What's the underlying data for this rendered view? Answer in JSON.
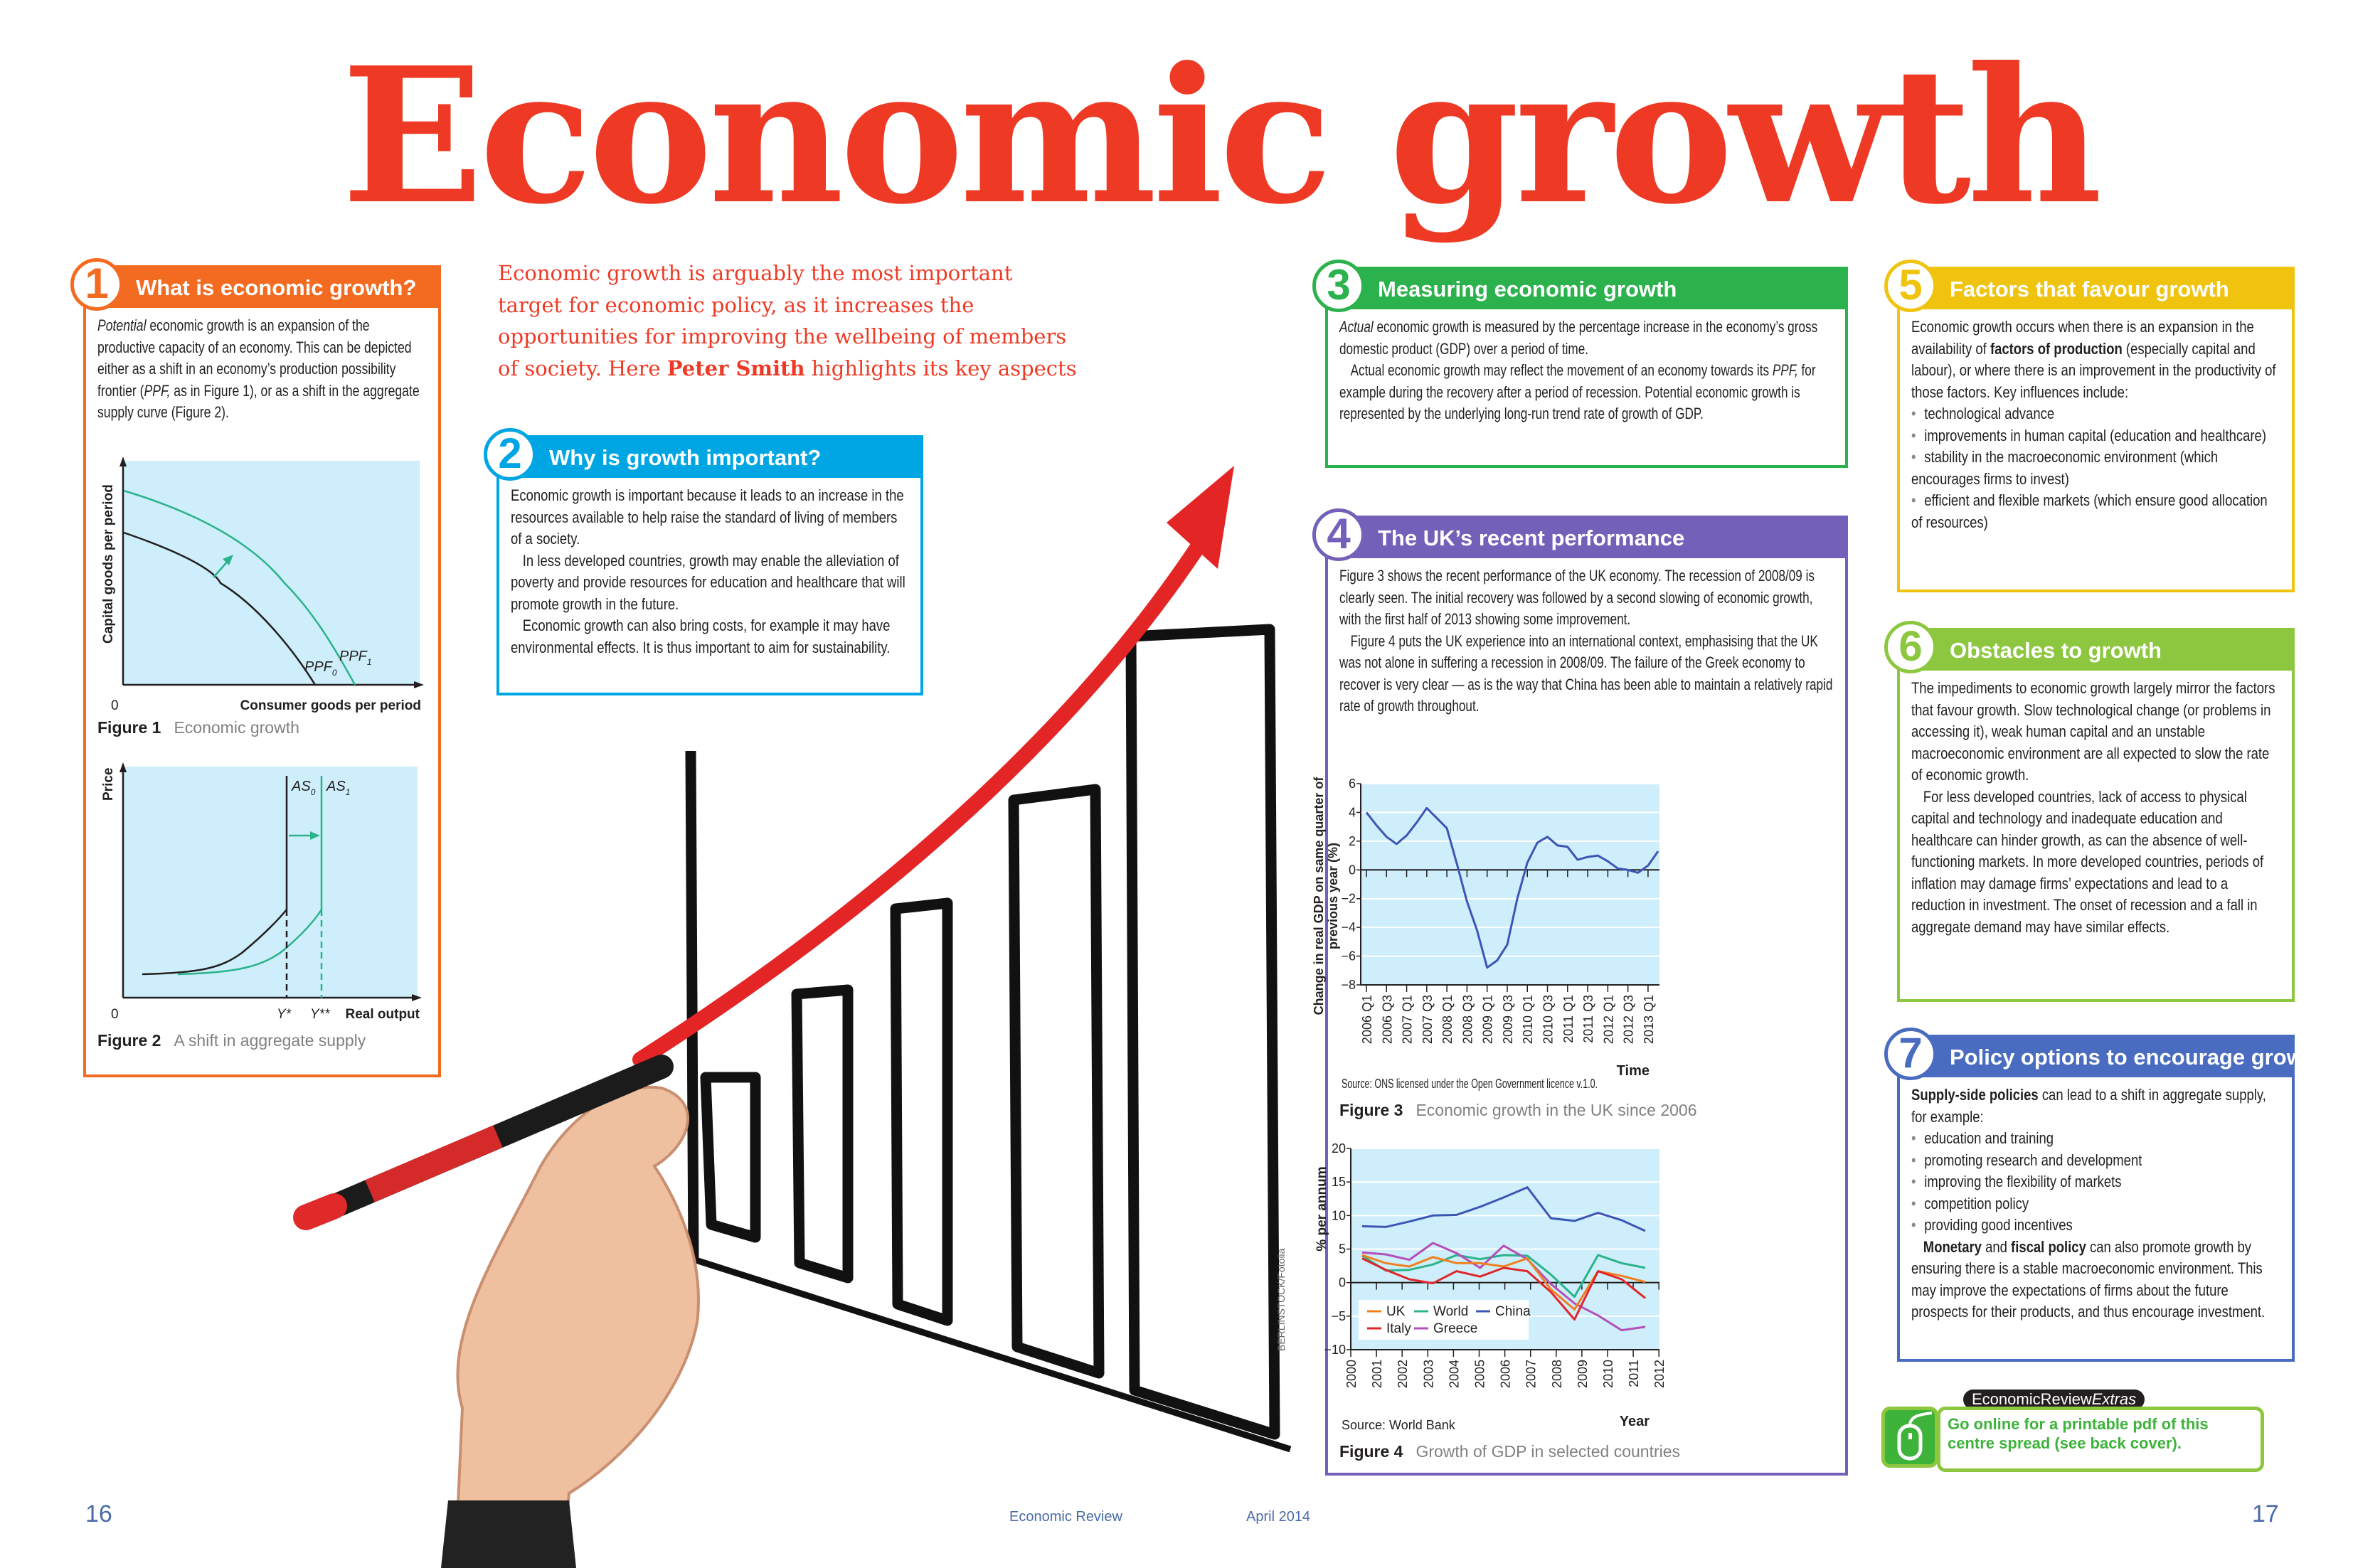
{
  "title": "Economic growth",
  "intro": {
    "before": "Economic growth is arguably the most important target for economic policy, as it increases the opportunities for improving the wellbeing of members of society. Here ",
    "author": "Peter Smith",
    "after": " highlights its key aspects"
  },
  "colors": {
    "title": "#ee3a24",
    "box1": "#f26b21",
    "box2": "#00a6e4",
    "box3": "#2bb24c",
    "box4": "#7360b8",
    "box5": "#f0c30f",
    "box6": "#8dc63f",
    "box7": "#4a6cc0",
    "chart_bg": "#cdeefa",
    "ppf1": "#2bb38a"
  },
  "boxes": [
    {
      "id": "box-1",
      "number": "1",
      "title": "What is economic growth?",
      "color": "#f26b21",
      "paragraphs": [
        {
          "runs": [
            {
              "t": "Potential",
              "i": true
            },
            {
              "t": " economic growth is an expansion of the productive capacity of an economy. This can be depicted either as a shift in an economy’s production possibility frontier ("
            },
            {
              "t": "PPF,",
              "i": true
            },
            {
              "t": " as in Figure 1), or as a shift in the aggregate supply curve (Figure 2)."
            }
          ]
        }
      ]
    },
    {
      "id": "box-2",
      "number": "2",
      "title": "Why is growth important?",
      "color": "#00a6e4",
      "paragraphs": [
        {
          "runs": [
            {
              "t": "Economic growth is important because it leads to an increase in the resources available to help raise the standard of living of members of a society."
            }
          ]
        },
        {
          "indent": true,
          "runs": [
            {
              "t": "In less developed countries, growth may enable the alleviation of poverty and provide resources for education and healthcare that will promote growth in the future."
            }
          ]
        },
        {
          "indent": true,
          "runs": [
            {
              "t": "Economic growth can also bring costs, for example it may have environmental effects. It is thus important to aim for sustainability."
            }
          ]
        }
      ]
    },
    {
      "id": "box-3",
      "number": "3",
      "title": "Measuring economic growth",
      "color": "#2bb24c",
      "paragraphs": [
        {
          "runs": [
            {
              "t": "Actual",
              "i": true
            },
            {
              "t": " economic growth is measured by the percentage increase in the economy’s gross domestic product (GDP) over a period of time."
            }
          ]
        },
        {
          "indent": true,
          "runs": [
            {
              "t": "Actual economic growth may reflect the movement of an economy towards its "
            },
            {
              "t": "PPF,",
              "i": true
            },
            {
              "t": " for example during the recovery after a period of recession. Potential economic growth is represented by the underlying long-run trend rate of growth of GDP."
            }
          ]
        }
      ]
    },
    {
      "id": "box-4",
      "number": "4",
      "title": "The UK’s recent performance",
      "color": "#7360b8",
      "paragraphs": [
        {
          "runs": [
            {
              "t": "Figure 3 shows the recent performance of the UK economy. The recession of 2008/09 is clearly seen. The initial recovery was followed by a second slowing of economic growth, with the first half of 2013 showing some improvement."
            }
          ]
        },
        {
          "indent": true,
          "runs": [
            {
              "t": "Figure 4 puts the UK experience into an international context, emphasising that the UK was not alone in suffering a recession in 2008/09. The failure of the Greek economy to recover is very clear — as is the way that China has been able to maintain a relatively rapid rate of growth throughout."
            }
          ]
        }
      ]
    },
    {
      "id": "box-5",
      "number": "5",
      "title": "Factors that favour growth",
      "color": "#f0c30f",
      "paragraphs": [
        {
          "runs": [
            {
              "t": "Economic growth occurs when there is an expansion in the availability of "
            },
            {
              "t": "factors of production",
              "b": true
            },
            {
              "t": " (especially capital and labour), or where there is an improvement in the productivity of those factors. Key influences include:"
            }
          ]
        },
        {
          "bullet": true,
          "runs": [
            {
              "t": "technological advance"
            }
          ]
        },
        {
          "bullet": true,
          "runs": [
            {
              "t": "improvements in human capital (education and healthcare)"
            }
          ]
        },
        {
          "bullet": true,
          "runs": [
            {
              "t": "stability in the macroeconomic environment (which encourages firms to invest)"
            }
          ]
        },
        {
          "bullet": true,
          "runs": [
            {
              "t": "efficient and flexible markets (which ensure good allocation of resources)"
            }
          ]
        }
      ]
    },
    {
      "id": "box-6",
      "number": "6",
      "title": "Obstacles to growth",
      "color": "#8dc63f",
      "paragraphs": [
        {
          "runs": [
            {
              "t": "The impediments to economic growth largely mirror the factors that favour growth. Slow technological change (or problems in accessing it), weak human capital and an unstable macroeconomic environment are all expected to slow the rate of economic growth."
            }
          ]
        },
        {
          "indent": true,
          "runs": [
            {
              "t": "For less developed countries, lack of access to physical capital and technology and inadequate education and healthcare can hinder growth, as can the absence of well-functioning markets. In more developed countries, periods of inflation may damage firms’ expectations and lead to a reduction in investment. The onset of recession and a fall in aggregate demand may have similar effects."
            }
          ]
        }
      ]
    },
    {
      "id": "box-7",
      "number": "7",
      "title": "Policy options to encourage growth",
      "color": "#4a6cc0",
      "paragraphs": [
        {
          "runs": [
            {
              "t": "Supply-side policies",
              "b": true
            },
            {
              "t": " can lead to a shift in aggregate supply, for example:"
            }
          ]
        },
        {
          "bullet": true,
          "runs": [
            {
              "t": "education and training"
            }
          ]
        },
        {
          "bullet": true,
          "runs": [
            {
              "t": "promoting research and development"
            }
          ]
        },
        {
          "bullet": true,
          "runs": [
            {
              "t": "improving the flexibility of markets"
            }
          ]
        },
        {
          "bullet": true,
          "runs": [
            {
              "t": "competition policy"
            }
          ]
        },
        {
          "bullet": true,
          "runs": [
            {
              "t": "providing good incentives"
            }
          ]
        },
        {
          "indent": true,
          "runs": [
            {
              "t": "Monetary",
              "b": true
            },
            {
              "t": " and "
            },
            {
              "t": "fiscal policy",
              "b": true
            },
            {
              "t": " can also promote growth by ensuring there is a stable macroeconomic environment. This may improve the expectations of firms about the future prospects for their products, and thus encourage investment."
            }
          ]
        }
      ]
    }
  ],
  "figure1": {
    "label": "Figure 1",
    "caption": "Economic growth",
    "ylabel": "Capital goods per period",
    "xlabel": "Consumer goods per period",
    "origin": "0",
    "curve0": "PPF",
    "curve0_sub": "0",
    "curve1": "PPF",
    "curve1_sub": "1"
  },
  "figure2": {
    "label": "Figure 2",
    "caption": "A shift in aggregate supply",
    "ylabel": "Price",
    "xlabel": "Real output",
    "origin": "0",
    "curve0": "AS",
    "curve0_sub": "0",
    "curve1": "AS",
    "curve1_sub": "1",
    "y0": "Y*",
    "y1": "Y**"
  },
  "chart_data": [
    {
      "type": "line",
      "figure_label": "Figure 3",
      "title": "Economic growth in the UK since 2006",
      "ylabel": "Change in real GDP on same quarter of previous year (%)",
      "xlabel": "Time",
      "source": "Source: ONS licensed under the Open Government licence v.1.0.",
      "ylim": [
        -8,
        6
      ],
      "yticks": [
        6,
        4,
        2,
        0,
        -2,
        -4,
        -6,
        -8
      ],
      "ytick_labels": [
        "6",
        "4",
        "2",
        "0",
        "−2",
        "−4",
        "−6",
        "−8"
      ],
      "grid": true,
      "tick_labels": [
        "2006 Q1",
        "2006 Q3",
        "2007 Q1",
        "2007 Q3",
        "2008 Q1",
        "2008 Q3",
        "2009 Q1",
        "2009 Q3",
        "2010 Q1",
        "2010 Q3",
        "2011 Q1",
        "2011 Q3",
        "2012 Q1",
        "2012 Q3",
        "2013 Q1"
      ],
      "x": [
        "2006 Q1",
        "2006 Q2",
        "2006 Q3",
        "2006 Q4",
        "2007 Q1",
        "2007 Q2",
        "2007 Q3",
        "2007 Q4",
        "2008 Q1",
        "2008 Q2",
        "2008 Q3",
        "2008 Q4",
        "2009 Q1",
        "2009 Q2",
        "2009 Q3",
        "2009 Q4",
        "2010 Q1",
        "2010 Q2",
        "2010 Q3",
        "2010 Q4",
        "2011 Q1",
        "2011 Q2",
        "2011 Q3",
        "2011 Q4",
        "2012 Q1",
        "2012 Q2",
        "2012 Q3",
        "2012 Q4",
        "2013 Q1",
        "2013 Q2"
      ],
      "values": [
        4.0,
        3.1,
        2.3,
        1.8,
        2.4,
        3.3,
        4.3,
        3.6,
        2.9,
        0.4,
        -2.2,
        -4.2,
        -6.8,
        -6.3,
        -5.2,
        -2.0,
        0.5,
        1.9,
        2.3,
        1.7,
        1.6,
        0.7,
        0.9,
        1.0,
        0.6,
        0.1,
        0.0,
        -0.2,
        0.3,
        1.3
      ],
      "color": "#3d56b5"
    },
    {
      "type": "line",
      "figure_label": "Figure 4",
      "title": "Growth of GDP in selected countries",
      "ylabel": "% per annum",
      "xlabel": "Year",
      "source": "Source: World Bank",
      "ylim": [
        -10,
        20
      ],
      "yticks": [
        20,
        15,
        10,
        5,
        0,
        -5,
        -10
      ],
      "ytick_labels": [
        "20",
        "15",
        "10",
        "5",
        "0",
        "−5",
        "−10"
      ],
      "tick_labels": [
        "2000",
        "2001",
        "2002",
        "2003",
        "2004",
        "2005",
        "2006",
        "2007",
        "2008",
        "2009",
        "2010",
        "2011",
        "2012"
      ],
      "grid": true,
      "legend_position": "bottom-left",
      "x": [
        2000,
        2001,
        2002,
        2003,
        2004,
        2005,
        2006,
        2007,
        2008,
        2009,
        2010,
        2011,
        2012
      ],
      "series": [
        {
          "name": "China",
          "color": "#3d56b5",
          "values": [
            8.4,
            8.3,
            9.1,
            10.0,
            10.1,
            11.3,
            12.7,
            14.2,
            9.6,
            9.2,
            10.4,
            9.3,
            7.7
          ]
        },
        {
          "name": "World",
          "color": "#2bb38a",
          "values": [
            4.0,
            1.8,
            1.9,
            2.7,
            4.1,
            3.5,
            4.1,
            4.0,
            1.2,
            -2.1,
            4.1,
            2.9,
            2.2
          ]
        },
        {
          "name": "Greece",
          "color": "#b44fb8",
          "values": [
            4.5,
            4.2,
            3.4,
            5.9,
            4.4,
            2.2,
            5.5,
            3.5,
            -0.2,
            -3.1,
            -4.9,
            -7.1,
            -6.6
          ]
        },
        {
          "name": "UK",
          "color": "#f0801e",
          "values": [
            4.1,
            2.9,
            2.4,
            3.8,
            2.9,
            2.9,
            2.4,
            3.6,
            -1.0,
            -4.0,
            1.7,
            1.0,
            0.1
          ]
        },
        {
          "name": "Italy",
          "color": "#e0262b",
          "values": [
            3.6,
            1.9,
            0.5,
            -0.1,
            1.7,
            0.9,
            2.2,
            1.7,
            -1.4,
            -5.5,
            1.7,
            0.5,
            -2.3
          ]
        }
      ],
      "legend_order": [
        "UK",
        "World",
        "China",
        "Italy",
        "Greece"
      ]
    }
  ],
  "photo_credit": "BERLINSTOCK/Fotolia",
  "extras": {
    "tag_main": "EconomicReview",
    "tag_italic": "Extras",
    "text": "Go online for a printable pdf of this centre spread (see back cover).",
    "icon": "computer-mouse-icon"
  },
  "footer": {
    "page_left": "16",
    "magazine": "Economic Review",
    "date": "April 2014",
    "page_right": "17"
  }
}
